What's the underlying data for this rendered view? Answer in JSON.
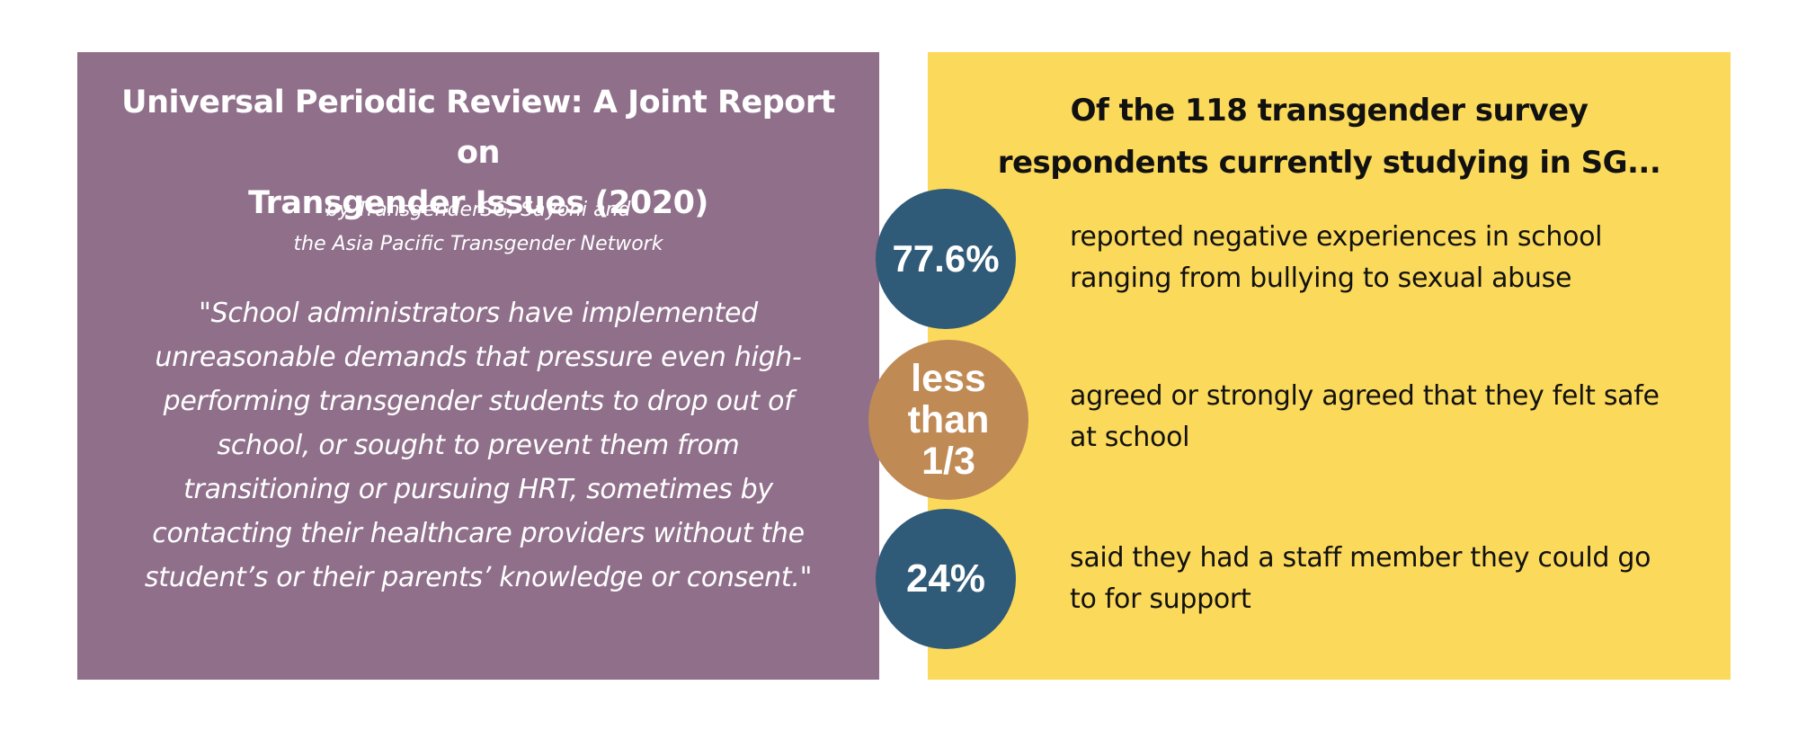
{
  "left_panel": {
    "title_lines": [
      "Universal Periodic Review: A Joint Report on",
      "Transgender Issues (2020)"
    ],
    "byline_lines": [
      "by TransgenderSG, Sayoni and",
      "the Asia Pacific Transgender Network"
    ],
    "quote_lines": [
      "\"School administrators have implemented",
      "unreasonable demands that pressure even high-",
      "performing transgender students to drop out of",
      "school, or sought to prevent them from",
      "transitioning or pursuing HRT, sometimes by",
      "contacting their healthcare providers without the",
      "student’s or their parents’ knowledge or consent.\""
    ]
  },
  "right_panel": {
    "title_lines": [
      "Of the 118 transgender survey",
      "respondents currently studying in SG..."
    ],
    "stats": [
      {
        "value": "77.6%",
        "text_lines": [
          "reported negative experiences in school",
          "ranging from bullying to sexual abuse"
        ]
      },
      {
        "value_lines": [
          "less",
          "than",
          "1/3"
        ],
        "text_lines": [
          "agreed or strongly agreed that they felt safe",
          "at school"
        ]
      },
      {
        "value": "24%",
        "text_lines": [
          "said they had a staff member they could go",
          "to for support"
        ]
      }
    ]
  },
  "colors": {
    "left_panel_bg": "#8f6f8a",
    "right_panel_bg": "#fbd95a",
    "circle_blue": "#2f5a78",
    "circle_tan": "#c08a55"
  }
}
